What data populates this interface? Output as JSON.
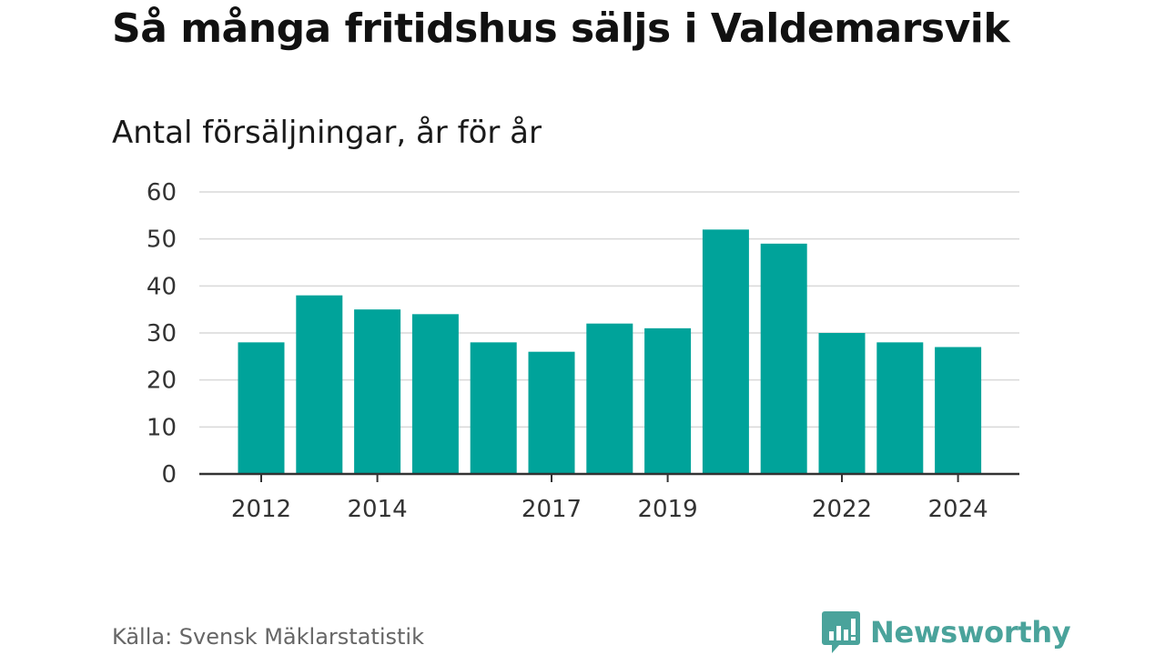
{
  "chart_data": {
    "type": "bar",
    "title": "Så många fritidshus säljs i Valdemarsvik",
    "subtitle": "Antal försäljningar, år för år",
    "categories": [
      "2012",
      "2013",
      "2014",
      "2015",
      "2016",
      "2017",
      "2018",
      "2019",
      "2020",
      "2021",
      "2022",
      "2023",
      "2024"
    ],
    "values": [
      28,
      38,
      35,
      34,
      28,
      26,
      32,
      31,
      52,
      49,
      30,
      28,
      27
    ],
    "x_tick_labels": [
      "2012",
      "2014",
      "2017",
      "2019",
      "2022",
      "2024"
    ],
    "y_ticks": [
      0,
      10,
      20,
      30,
      40,
      50,
      60
    ],
    "ylim": [
      0,
      60
    ],
    "xlabel": "",
    "ylabel": "",
    "grid": true,
    "bar_color": "#00a39a"
  },
  "footer": {
    "source": "Källa: Svensk Mäklarstatistik",
    "brand": "Newsworthy",
    "brand_color": "#4aa39b",
    "brand_icon": "bar-chart-speech-bubble-icon"
  }
}
